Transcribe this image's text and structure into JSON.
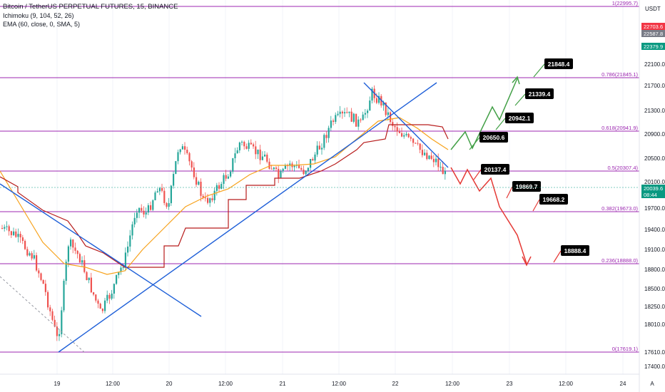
{
  "header": {
    "title": "Bitcoin / TetherUS PERPETUAL FUTURES, 15, BINANCE",
    "ichimoku": "Ichimoku (9, 104, 52, 26)",
    "ema": "EMA (60, close, 0, SMA, 5)"
  },
  "axis": {
    "currency": "USDT",
    "scale_button": "A",
    "price_ticks": [
      "22500.0",
      "22100.0",
      "21700.0",
      "21300.0",
      "20900.0",
      "20500.0",
      "20100.0",
      "19700.0",
      "19400.0",
      "19100.0",
      "18800.0",
      "18500.0",
      "18250.0",
      "18010.0",
      "17610.0",
      "17400.0"
    ],
    "time_ticks": [
      "19",
      "12:00",
      "20",
      "12:00",
      "21",
      "12:00",
      "22",
      "12:00",
      "23",
      "12:00",
      "24"
    ]
  },
  "price_badges": [
    {
      "text": "22703.6",
      "color": "#f23645"
    },
    {
      "text": "22587.8",
      "color": "#787b86"
    },
    {
      "text": "22379.9",
      "color": "#089981"
    },
    {
      "text": "20039.6",
      "color": "#089981"
    },
    {
      "text": "08:44",
      "color": "#089981"
    }
  ],
  "fib_levels": [
    {
      "label": "1(22995.7)"
    },
    {
      "label": "0.786(21845.1)"
    },
    {
      "label": "0.618(20941.9)"
    },
    {
      "label": "0.5(20307.4)"
    },
    {
      "label": "0.382(19673.0)"
    },
    {
      "label": "0.236(18888.0)"
    },
    {
      "label": "0(17619.1)"
    }
  ],
  "targets": [
    {
      "label": "21848.4"
    },
    {
      "label": "21339.4"
    },
    {
      "label": "20942.1"
    },
    {
      "label": "20650.6"
    },
    {
      "label": "20137.4"
    },
    {
      "label": "19869.7"
    },
    {
      "label": "19668.2"
    },
    {
      "label": "18888.4"
    }
  ],
  "colors": {
    "fib_line": "#9c27b0",
    "candle_up": "#26a69a",
    "candle_down": "#ef5350",
    "ema": "#f7a21b",
    "ichimoku": "#b71c1c",
    "trendline": "#1e5fd8",
    "bull_path": "#43a047",
    "bear_path": "#e53935"
  }
}
